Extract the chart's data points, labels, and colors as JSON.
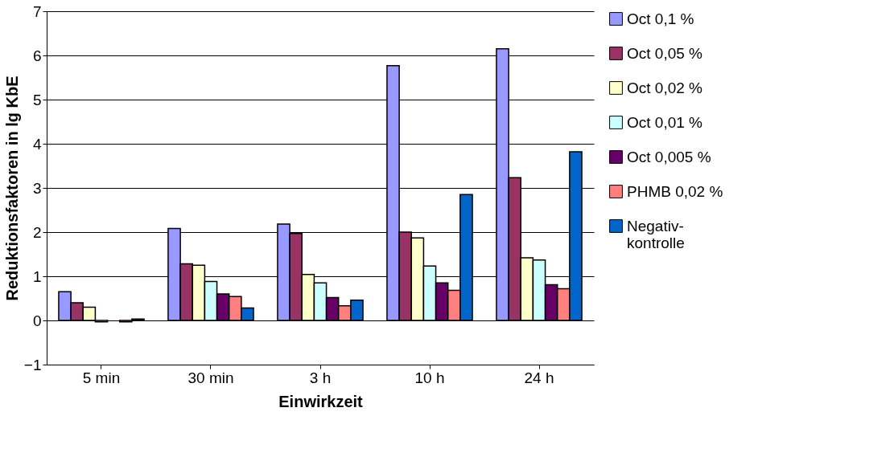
{
  "chart_data": {
    "type": "bar",
    "xlabel": "Einwirkzeit",
    "ylabel": "Reduktionsfaktoren in lg KbE",
    "categories": [
      "5 min",
      "30 min",
      "3 h",
      "10 h",
      "24 h"
    ],
    "series": [
      {
        "name": "Oct 0,1 %",
        "color": "#9999ff",
        "values": [
          0.65,
          2.08,
          2.18,
          5.77,
          6.15
        ]
      },
      {
        "name": "Oct 0,05 %",
        "color": "#993366",
        "values": [
          0.4,
          1.28,
          1.97,
          2.0,
          3.23
        ]
      },
      {
        "name": "Oct 0,02 %",
        "color": "#ffffcc",
        "values": [
          0.3,
          1.25,
          1.04,
          1.87,
          1.42
        ]
      },
      {
        "name": "Oct 0,01 %",
        "color": "#ccffff",
        "values": [
          -0.03,
          0.88,
          0.85,
          1.23,
          1.37
        ]
      },
      {
        "name": "Oct 0,005 %",
        "color": "#660066",
        "values": [
          null,
          0.6,
          0.52,
          0.85,
          0.81
        ]
      },
      {
        "name": "PHMB 0,02 %",
        "color": "#ff8080",
        "values": [
          -0.03,
          0.54,
          0.33,
          0.68,
          0.72
        ]
      },
      {
        "name": "Negativ-\nkontrolle",
        "color": "#0066cc",
        "values": [
          0.03,
          0.28,
          0.46,
          2.85,
          3.82
        ]
      }
    ],
    "ylim": [
      -1,
      7
    ],
    "yticks": [
      -1,
      0,
      1,
      2,
      3,
      4,
      5,
      6,
      7
    ],
    "grid": "y",
    "legend": "right"
  }
}
